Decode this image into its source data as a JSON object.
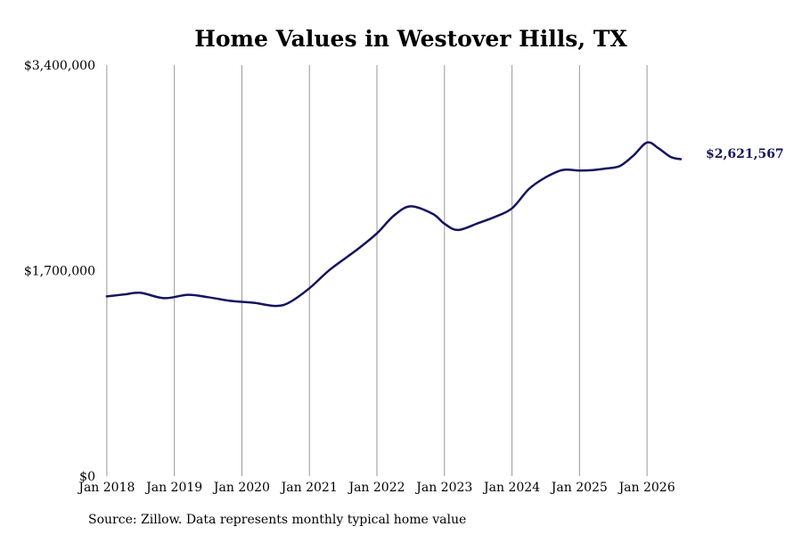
{
  "chart_data": {
    "type": "line",
    "title": "Home Values in Westover Hills, TX",
    "source": "Source: Zillow. Data represents monthly typical home value",
    "ylim": [
      0,
      3400000
    ],
    "y_ticks": [
      {
        "value": 0,
        "label": "$0"
      },
      {
        "value": 1700000,
        "label": "$1,700,000"
      },
      {
        "value": 3400000,
        "label": "$3,400,000"
      }
    ],
    "x_ticks": [
      {
        "value": 2018,
        "label": "Jan 2018"
      },
      {
        "value": 2019,
        "label": "Jan 2019"
      },
      {
        "value": 2020,
        "label": "Jan 2020"
      },
      {
        "value": 2021,
        "label": "Jan 2021"
      },
      {
        "value": 2022,
        "label": "Jan 2022"
      },
      {
        "value": 2023,
        "label": "Jan 2023"
      },
      {
        "value": 2024,
        "label": "Jan 2024"
      },
      {
        "value": 2025,
        "label": "Jan 2025"
      },
      {
        "value": 2026,
        "label": "Jan 2026"
      }
    ],
    "xlim": [
      2017.83,
      2026.83
    ],
    "grid": {
      "vertical": true,
      "horizontal": false
    },
    "line_color": "#14145e",
    "end_label": "$2,621,567",
    "series": [
      {
        "x": [
          2018.0,
          2018.25,
          2018.5,
          2018.85,
          2019.2,
          2019.5,
          2019.8,
          2020.0,
          2020.2,
          2020.5,
          2020.7,
          2021.0,
          2021.3,
          2021.7,
          2022.0,
          2022.25,
          2022.5,
          2022.83,
          2023.0,
          2023.2,
          2023.5,
          2023.75,
          2024.0,
          2024.25,
          2024.5,
          2024.75,
          2025.0,
          2025.2,
          2025.4,
          2025.6,
          2025.8,
          2026.0,
          2026.17,
          2026.35,
          2026.5
        ],
        "y": [
          1487000,
          1502000,
          1516000,
          1472000,
          1500000,
          1480000,
          1452000,
          1442000,
          1432000,
          1408000,
          1436000,
          1554000,
          1706000,
          1871000,
          2008000,
          2154000,
          2232000,
          2168000,
          2088000,
          2036000,
          2093000,
          2145000,
          2215000,
          2375000,
          2472000,
          2533000,
          2528000,
          2532000,
          2545000,
          2566000,
          2652000,
          2760000,
          2712000,
          2640000,
          2621567
        ]
      }
    ]
  }
}
